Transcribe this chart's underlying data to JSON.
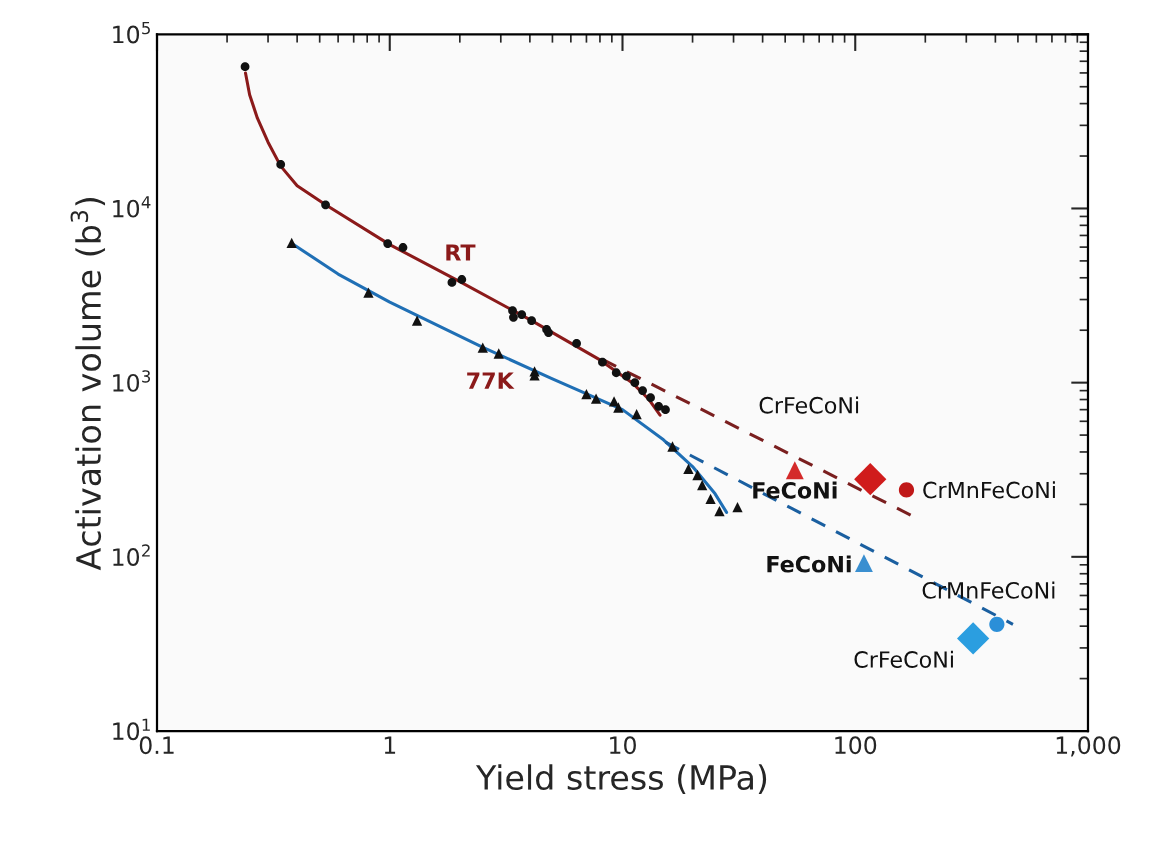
{
  "chart_data": {
    "type": "scatter",
    "xlabel": "Yield stress (MPa)",
    "ylabel": "Activation volume (b$^{3}$)",
    "log": "xy",
    "xlim": [
      0.1,
      1000
    ],
    "ylim": [
      10,
      100000
    ],
    "xticks": [
      0.1,
      1,
      10,
      100,
      {
        "value": 1000,
        "label": "1,000"
      }
    ],
    "yticks": [
      {
        "value": 10,
        "label": "10$^{1}$"
      },
      {
        "value": 100,
        "label": "10$^{2}$"
      },
      {
        "value": 1000,
        "label": "10$^{3}$"
      },
      {
        "value": 10000,
        "label": "10$^{4}$"
      },
      {
        "value": 100000,
        "label": "10$^{5}$"
      }
    ],
    "grid": false,
    "legend": false,
    "series": [
      {
        "type": "line",
        "marker": "none",
        "line_style": "solid",
        "color": "#8b1a1a",
        "x": [
          0.24,
          0.25,
          0.27,
          0.3,
          0.34,
          0.4,
          0.53,
          1.0,
          2.0,
          4.0,
          8.0,
          11,
          13,
          14.5
        ],
        "values": [
          60000,
          45000,
          33000,
          24000,
          17500,
          13500,
          10500,
          6200,
          3800,
          2300,
          1350,
          1000,
          800,
          650
        ]
      },
      {
        "type": "line",
        "marker": "none",
        "line_style": "solid",
        "color": "#1f6fb5",
        "x": [
          0.38,
          0.6,
          1.0,
          2.5,
          5,
          10,
          15,
          20,
          25,
          28
        ],
        "values": [
          6300,
          4200,
          2900,
          1600,
          1050,
          700,
          470,
          330,
          230,
          180
        ]
      },
      {
        "type": "line",
        "marker": "none",
        "line_style": "dashed",
        "color": "#7a1f1f",
        "x": [
          8.2,
          177
        ],
        "values": [
          1360,
          171
        ]
      },
      {
        "type": "line",
        "marker": "none",
        "line_style": "dashed",
        "color": "#1a5fa0",
        "x": [
          15.3,
          476
        ],
        "values": [
          455,
          41
        ]
      },
      {
        "name": "RT",
        "marker": "circle",
        "color": "#111111",
        "x": [
          0.239,
          0.34,
          0.53,
          0.98,
          1.14,
          1.85,
          2.04,
          3.37,
          3.4,
          3.69,
          4.07,
          4.72,
          4.81,
          6.35,
          8.2,
          9.4,
          10.4,
          11.3,
          12.2,
          13.2,
          14.3,
          15.3
        ],
        "values": [
          65200,
          17900,
          10500,
          6290,
          5970,
          3760,
          3910,
          2590,
          2370,
          2460,
          2270,
          2020,
          1940,
          1680,
          1310,
          1140,
          1090,
          1000,
          900,
          820,
          730,
          700
        ]
      },
      {
        "name": "77K",
        "marker": "triangle",
        "color": "#111111",
        "x": [
          0.379,
          0.81,
          1.31,
          2.51,
          2.94,
          4.19,
          4.19,
          7.0,
          7.7,
          9.2,
          9.6,
          11.5,
          16.4,
          19.2,
          21.0,
          22.0,
          23.9,
          26.1,
          31.2
        ],
        "values": [
          6350,
          3290,
          2270,
          1590,
          1470,
          1160,
          1100,
          860,
          810,
          780,
          720,
          660,
          430,
          320,
          295,
          258,
          215,
          183,
          193
        ]
      },
      {
        "marker": "triangle",
        "color": "#d42a2a",
        "x": [
          55
        ],
        "values": [
          314
        ]
      },
      {
        "marker": "diamond",
        "color": "#d01c1c",
        "x": [
          116
        ],
        "values": [
          279
        ]
      },
      {
        "marker": "circle",
        "color": "#c01818",
        "x": [
          166
        ],
        "values": [
          242
        ]
      },
      {
        "marker": "triangle",
        "color": "#3a8fd0",
        "x": [
          109
        ],
        "values": [
          92
        ]
      },
      {
        "marker": "diamond",
        "color": "#2b9ee0",
        "x": [
          321
        ],
        "values": [
          34
        ]
      },
      {
        "marker": "circle",
        "color": "#2b8fd8",
        "x": [
          406
        ],
        "values": [
          41
        ]
      }
    ],
    "annotations": [
      "FeCoNi",
      "CrFeCoNi",
      "CrMnFeCoNi",
      "FeCoNi",
      "CrFeCoNi",
      "CrMnFeCoNi"
    ]
  }
}
